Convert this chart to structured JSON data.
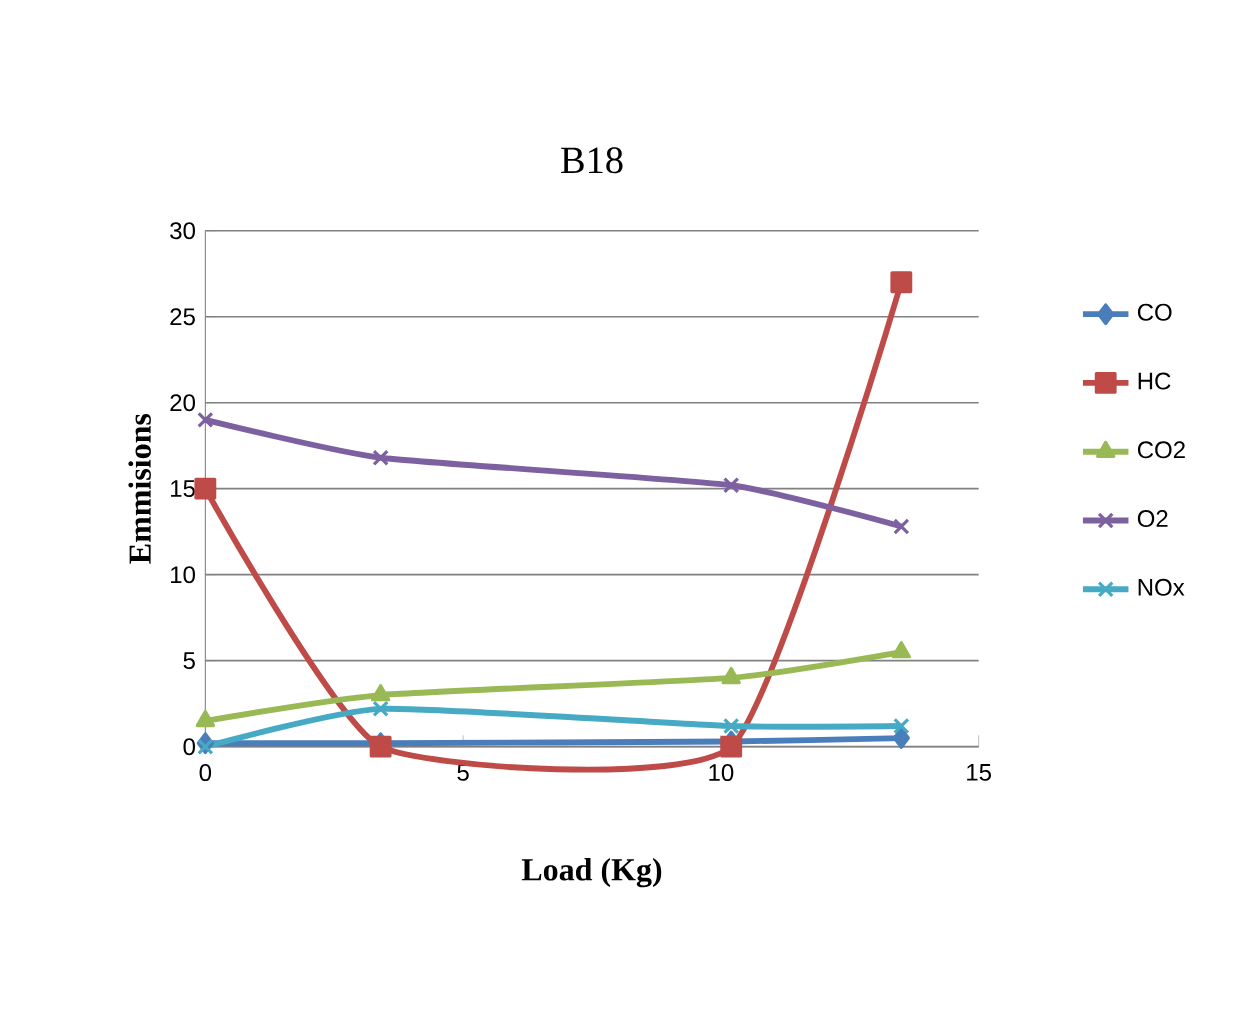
{
  "chart_data": {
    "type": "line",
    "title": "B18",
    "xlabel": "Load (Kg)",
    "ylabel": "Emmisions",
    "xlim": [
      0,
      15
    ],
    "xticks": [
      0,
      5,
      10,
      15
    ],
    "ylim": [
      0,
      30
    ],
    "yticks": [
      0,
      5,
      10,
      15,
      20,
      25,
      30
    ],
    "grid": "y",
    "legend": "right",
    "x": [
      0,
      3.4,
      10.2,
      13.5
    ],
    "series": [
      {
        "name": "CO",
        "color": "#4a7ebb",
        "marker": "diamond",
        "values": [
          0.2,
          0.2,
          0.3,
          0.5
        ]
      },
      {
        "name": "HC",
        "color": "#be4b48",
        "marker": "square",
        "values": [
          15,
          0,
          0,
          27
        ]
      },
      {
        "name": "CO2",
        "color": "#98b954",
        "marker": "triangle",
        "values": [
          1.5,
          3,
          4,
          5.5
        ]
      },
      {
        "name": "O2",
        "color": "#7d60a0",
        "marker": "cross",
        "values": [
          19,
          16.8,
          15.2,
          12.8
        ]
      },
      {
        "name": "NOx",
        "color": "#46aac5",
        "marker": "cross",
        "values": [
          0,
          2.2,
          1.2,
          1.2
        ]
      }
    ]
  }
}
